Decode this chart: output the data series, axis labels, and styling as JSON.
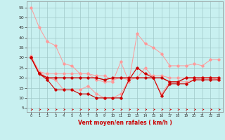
{
  "background_color": "#c8f0f0",
  "grid_color": "#a0c8c8",
  "line_color_dark": "#cc0000",
  "line_color_light": "#ff9999",
  "xlabel": "Vent moyen/en rafales ( km/h )",
  "ylabel_ticks": [
    5,
    10,
    15,
    20,
    25,
    30,
    35,
    40,
    45,
    50,
    55
  ],
  "x_ticks": [
    0,
    1,
    2,
    3,
    4,
    5,
    6,
    7,
    8,
    9,
    10,
    11,
    12,
    13,
    14,
    15,
    16,
    17,
    18,
    19,
    20,
    21,
    22,
    23
  ],
  "xlim": [
    -0.5,
    23.5
  ],
  "ylim": [
    3,
    58
  ],
  "series": [
    {
      "name": "max_light",
      "color": "#ff9999",
      "lw": 0.7,
      "marker": "D",
      "ms": 1.8,
      "values": [
        55,
        45,
        38,
        36,
        27,
        26,
        22,
        22,
        19,
        18,
        18,
        28,
        18,
        42,
        37,
        35,
        32,
        26,
        26,
        26,
        27,
        26,
        29,
        29
      ]
    },
    {
      "name": "upper_light",
      "color": "#ff9999",
      "lw": 0.7,
      "marker": "D",
      "ms": 1.8,
      "values": [
        31,
        23,
        22,
        22,
        22,
        22,
        22,
        22,
        21,
        21,
        19,
        20,
        19,
        25,
        22,
        21,
        21,
        20,
        20,
        20,
        20,
        20,
        20,
        20
      ]
    },
    {
      "name": "lower_light",
      "color": "#ff9999",
      "lw": 0.7,
      "marker": "D",
      "ms": 1.8,
      "values": [
        30,
        23,
        20,
        19,
        14,
        14,
        14,
        16,
        12,
        10,
        10,
        12,
        19,
        20,
        25,
        20,
        12,
        18,
        18,
        18,
        19,
        20,
        20,
        19
      ]
    },
    {
      "name": "min_dark",
      "color": "#cc0000",
      "lw": 0.8,
      "marker": "D",
      "ms": 1.8,
      "values": [
        30,
        22,
        19,
        14,
        14,
        14,
        12,
        12,
        10,
        10,
        10,
        10,
        19,
        25,
        22,
        20,
        11,
        17,
        17,
        17,
        19,
        19,
        19,
        19
      ]
    },
    {
      "name": "mean_dark",
      "color": "#cc0000",
      "lw": 1.0,
      "marker": "D",
      "ms": 1.8,
      "values": [
        30,
        22,
        20,
        20,
        20,
        20,
        20,
        20,
        20,
        19,
        20,
        20,
        20,
        20,
        20,
        20,
        20,
        18,
        18,
        20,
        20,
        20,
        20,
        20
      ]
    }
  ]
}
